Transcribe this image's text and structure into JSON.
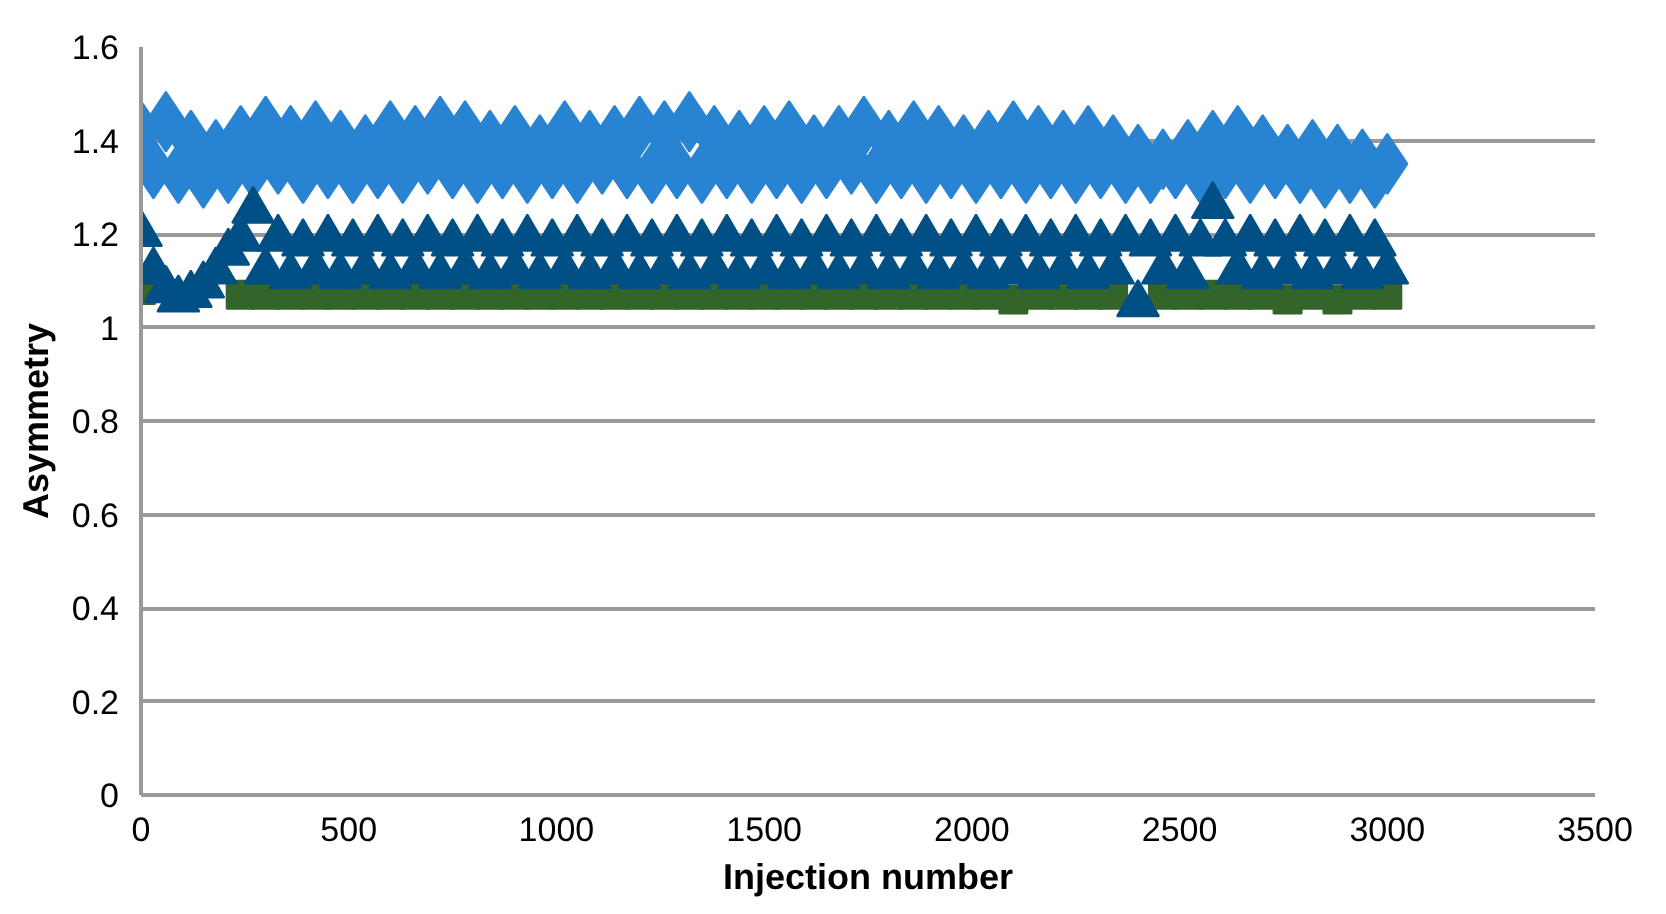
{
  "chart_data": {
    "type": "scatter",
    "xlabel": "Injection number",
    "ylabel": "Asymmetry",
    "x": [
      0,
      30,
      60,
      90,
      120,
      150,
      180,
      210,
      240,
      270,
      300,
      330,
      360,
      390,
      420,
      450,
      480,
      510,
      540,
      570,
      600,
      630,
      660,
      690,
      720,
      750,
      780,
      810,
      840,
      870,
      900,
      930,
      960,
      990,
      1020,
      1050,
      1080,
      1110,
      1140,
      1170,
      1200,
      1230,
      1260,
      1290,
      1320,
      1350,
      1380,
      1410,
      1440,
      1470,
      1500,
      1530,
      1560,
      1590,
      1620,
      1650,
      1680,
      1710,
      1740,
      1770,
      1800,
      1830,
      1860,
      1890,
      1920,
      1950,
      1980,
      2010,
      2040,
      2070,
      2100,
      2130,
      2160,
      2190,
      2220,
      2250,
      2280,
      2310,
      2340,
      2370,
      2400,
      2430,
      2460,
      2490,
      2520,
      2550,
      2580,
      2610,
      2640,
      2670,
      2700,
      2730,
      2760,
      2790,
      2820,
      2850,
      2880,
      2910,
      2940,
      2970,
      3000
    ],
    "series": [
      {
        "color": "#33652b",
        "marker": "square",
        "x": [
          0,
          240,
          300,
          360,
          420,
          480,
          540,
          600,
          660,
          720,
          780,
          840,
          900,
          960,
          1020,
          1080,
          1140,
          1200,
          1260,
          1320,
          1380,
          1440,
          1500,
          1560,
          1620,
          1680,
          1740,
          1800,
          1860,
          1920,
          1980,
          2040,
          2100,
          2160,
          2220,
          2280,
          2340,
          2400,
          2460,
          2520,
          2580,
          2640,
          2700,
          2760,
          2820,
          2880,
          2940,
          3000
        ],
        "values": [
          1.08,
          1.07,
          1.07,
          1.07,
          1.07,
          1.07,
          1.07,
          1.07,
          1.07,
          1.07,
          1.07,
          1.07,
          1.07,
          1.07,
          1.07,
          1.07,
          1.07,
          1.07,
          1.07,
          1.07,
          1.07,
          1.07,
          1.07,
          1.07,
          1.07,
          1.07,
          1.07,
          1.07,
          1.07,
          1.07,
          1.07,
          1.07,
          1.06,
          1.07,
          1.07,
          1.07,
          1.07,
          null,
          1.07,
          1.07,
          1.07,
          1.07,
          1.07,
          1.06,
          1.07,
          1.06,
          1.07,
          1.07
        ]
      },
      {
        "color": "#2983d3",
        "marker": "diamond",
        "values": [
          1.42,
          1.34,
          1.44,
          1.33,
          1.4,
          1.32,
          1.38,
          1.33,
          1.41,
          1.34,
          1.43,
          1.35,
          1.41,
          1.33,
          1.42,
          1.34,
          1.4,
          1.33,
          1.39,
          1.34,
          1.42,
          1.33,
          1.41,
          1.35,
          1.43,
          1.34,
          1.42,
          1.33,
          1.4,
          1.34,
          1.41,
          1.33,
          1.39,
          1.34,
          1.42,
          1.33,
          1.4,
          1.35,
          1.41,
          1.34,
          1.43,
          1.33,
          1.42,
          1.34,
          1.44,
          1.33,
          1.41,
          1.34,
          1.4,
          1.33,
          1.41,
          1.34,
          1.42,
          1.33,
          1.39,
          1.34,
          1.41,
          1.35,
          1.43,
          1.33,
          1.4,
          1.34,
          1.42,
          1.33,
          1.41,
          1.34,
          1.39,
          1.33,
          1.4,
          1.34,
          1.42,
          1.33,
          1.41,
          1.34,
          1.4,
          1.33,
          1.41,
          1.34,
          1.39,
          1.33,
          1.37,
          1.33,
          1.36,
          1.34,
          1.38,
          1.33,
          1.4,
          1.34,
          1.41,
          1.33,
          1.39,
          1.34,
          1.37,
          1.33,
          1.38,
          1.32,
          1.37,
          1.33,
          1.36,
          1.32,
          1.35
        ]
      },
      {
        "color": "#004f85",
        "marker": "triangle",
        "values": [
          1.2,
          1.12,
          1.08,
          1.06,
          1.07,
          1.09,
          1.12,
          1.16,
          1.19,
          1.25,
          1.12,
          1.19,
          1.11,
          1.18,
          1.12,
          1.19,
          1.11,
          1.18,
          1.12,
          1.19,
          1.11,
          1.18,
          1.12,
          1.19,
          1.11,
          1.18,
          1.12,
          1.19,
          1.11,
          1.18,
          1.12,
          1.19,
          1.11,
          1.18,
          1.12,
          1.19,
          1.11,
          1.18,
          1.12,
          1.19,
          1.11,
          1.18,
          1.12,
          1.19,
          1.11,
          1.18,
          1.12,
          1.19,
          1.11,
          1.18,
          1.12,
          1.19,
          1.11,
          1.18,
          1.12,
          1.19,
          1.11,
          1.18,
          1.12,
          1.19,
          1.11,
          1.18,
          1.12,
          1.19,
          1.11,
          1.18,
          1.12,
          1.19,
          1.11,
          1.18,
          1.12,
          1.19,
          1.11,
          1.18,
          1.12,
          1.19,
          1.11,
          1.18,
          1.12,
          1.19,
          1.05,
          1.18,
          1.12,
          1.19,
          1.11,
          1.18,
          1.26,
          1.18,
          1.12,
          1.19,
          1.11,
          1.18,
          1.12,
          1.19,
          1.11,
          1.18,
          1.12,
          1.19,
          1.11,
          1.18,
          1.12
        ]
      }
    ],
    "xlim": [
      0,
      3500
    ],
    "xticks": [
      0,
      500,
      1000,
      1500,
      2000,
      2500,
      3000,
      3500
    ],
    "ylim": [
      0,
      1.6
    ],
    "yticks": [
      0,
      {
        "value": 0.2,
        "label": "0.2"
      },
      {
        "value": 0.4,
        "label": "0.4"
      },
      {
        "value": 0.6,
        "label": "0.6"
      },
      {
        "value": 0.8,
        "label": "0.8"
      },
      1,
      {
        "value": 1.2,
        "label": "1.2"
      },
      {
        "value": 1.4,
        "label": "1.4"
      },
      {
        "value": 1.6,
        "label": "1.6"
      }
    ],
    "grid": "y"
  }
}
